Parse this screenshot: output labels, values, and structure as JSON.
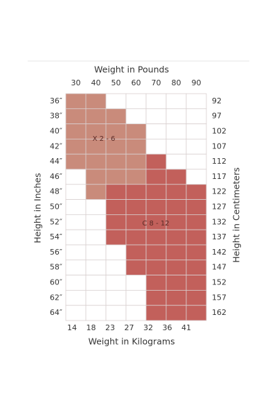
{
  "top_axis": {
    "title": "Weight in Pounds",
    "labels": [
      "30",
      "40",
      "50",
      "60",
      "70",
      "80",
      "90"
    ]
  },
  "bottom_axis": {
    "title": "Weight in Kilograms",
    "labels": [
      "14",
      "18",
      "23",
      "27",
      "32",
      "36",
      "41"
    ]
  },
  "left_axis": {
    "title": "Height in Inches",
    "labels": [
      "36″",
      "38″",
      "40″",
      "42″",
      "44″",
      "46″",
      "48″",
      "50″",
      "52″",
      "54″",
      "56″",
      "58″",
      "60″",
      "62″",
      "64″"
    ]
  },
  "right_axis": {
    "title": "Height in Centimeters",
    "labels": [
      "92",
      "97",
      "102",
      "107",
      "112",
      "117",
      "122",
      "127",
      "132",
      "137",
      "142",
      "147",
      "152",
      "157",
      "162"
    ]
  },
  "regions": [
    {
      "label": "X 2 - 6"
    },
    {
      "label": "C 8 - 12"
    }
  ]
}
